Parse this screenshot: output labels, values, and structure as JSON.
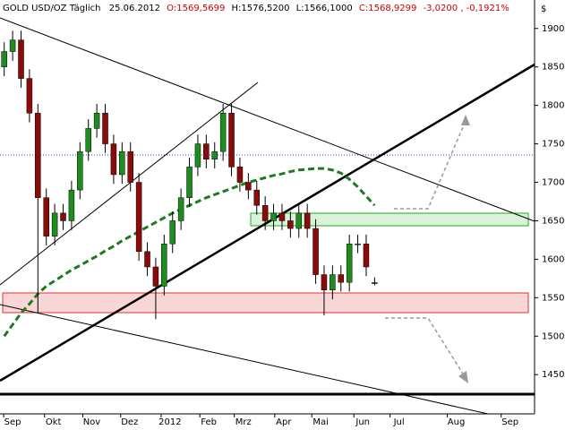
{
  "chart_data": {
    "type": "candlestick",
    "header": {
      "title": "GOLD USD/OZ Täglich",
      "date": "25.06.2012",
      "open": "O:1569,5699",
      "high": "H:1576,5200",
      "low": "L:1566,1000",
      "close": "C:1568,9299",
      "change": "-3,0200",
      "change_pct": "-0,1921%"
    },
    "currency": "$",
    "candles": {
      "open": [
        1850,
        1870,
        1885,
        1835,
        1790,
        1680,
        1630,
        1660,
        1650,
        1690,
        1740,
        1770,
        1790,
        1750,
        1710,
        1740,
        1700,
        1610,
        1590,
        1565,
        1620,
        1650,
        1680,
        1720,
        1750,
        1730,
        1740,
        1790,
        1720,
        1700,
        1690,
        1670,
        1650,
        1660,
        1650,
        1640,
        1660,
        1640,
        1580,
        1560,
        1580,
        1570,
        1620,
        1620,
        1569.5699
      ],
      "high": [
        1882,
        1897,
        1897,
        1847,
        1802,
        1692,
        1672,
        1672,
        1702,
        1752,
        1782,
        1802,
        1802,
        1762,
        1752,
        1752,
        1712,
        1622,
        1602,
        1632,
        1662,
        1692,
        1732,
        1762,
        1762,
        1752,
        1802,
        1802,
        1732,
        1712,
        1702,
        1682,
        1672,
        1672,
        1662,
        1672,
        1672,
        1652,
        1592,
        1592,
        1592,
        1632,
        1632,
        1632,
        1576.52
      ],
      "low": [
        1838,
        1858,
        1823,
        1778,
        1530,
        1618,
        1618,
        1638,
        1638,
        1678,
        1728,
        1758,
        1738,
        1698,
        1698,
        1688,
        1598,
        1578,
        1522,
        1553,
        1608,
        1638,
        1668,
        1708,
        1718,
        1718,
        1728,
        1708,
        1688,
        1678,
        1658,
        1638,
        1638,
        1638,
        1628,
        1628,
        1628,
        1568,
        1527,
        1548,
        1558,
        1558,
        1608,
        1578,
        1566.1
      ],
      "close": [
        1870,
        1885,
        1835,
        1790,
        1680,
        1630,
        1660,
        1650,
        1690,
        1740,
        1770,
        1790,
        1750,
        1710,
        1740,
        1700,
        1610,
        1590,
        1565,
        1620,
        1650,
        1680,
        1720,
        1750,
        1730,
        1740,
        1790,
        1720,
        1700,
        1690,
        1670,
        1650,
        1660,
        1650,
        1640,
        1660,
        1640,
        1580,
        1560,
        1580,
        1570,
        1620,
        1620,
        1590,
        1568.9299
      ]
    },
    "moving_average": {
      "color": "#1f7a1f",
      "values": [
        1500,
        1515,
        1530,
        1542,
        1555,
        1565,
        1572,
        1579,
        1586,
        1592,
        1598,
        1604,
        1611,
        1617,
        1624,
        1630,
        1636,
        1642,
        1648,
        1654,
        1660,
        1665,
        1670,
        1675,
        1680,
        1684,
        1688,
        1692,
        1696,
        1700,
        1703,
        1706,
        1709,
        1711,
        1714,
        1716,
        1717,
        1718,
        1718,
        1716,
        1712,
        1704,
        1694,
        1682,
        1670
      ]
    },
    "up_color": "#1e8c1e",
    "down_color": "#8b0a0a",
    "xlim": [
      -0.5,
      63
    ],
    "xticks": [
      {
        "value": 1,
        "label": "Sep"
      },
      {
        "value": 5.85,
        "label": "Okt"
      },
      {
        "value": 10.4,
        "label": "Nov"
      },
      {
        "value": 14.9,
        "label": "Dez"
      },
      {
        "value": 19.7,
        "label": "2012"
      },
      {
        "value": 24.3,
        "label": "Feb"
      },
      {
        "value": 28.4,
        "label": "Mrz"
      },
      {
        "value": 33.2,
        "label": "Apr"
      },
      {
        "value": 37.6,
        "label": "Mai"
      },
      {
        "value": 42.6,
        "label": "Jun"
      },
      {
        "value": 46.9,
        "label": "Jul"
      },
      {
        "value": 53.7,
        "label": "Aug"
      },
      {
        "value": 60.1,
        "label": "Sep"
      }
    ],
    "ylim": [
      1399,
      1937
    ],
    "yticks": [
      1450,
      1500,
      1550,
      1600,
      1650,
      1700,
      1750,
      1800,
      1850,
      1900
    ]
  }
}
